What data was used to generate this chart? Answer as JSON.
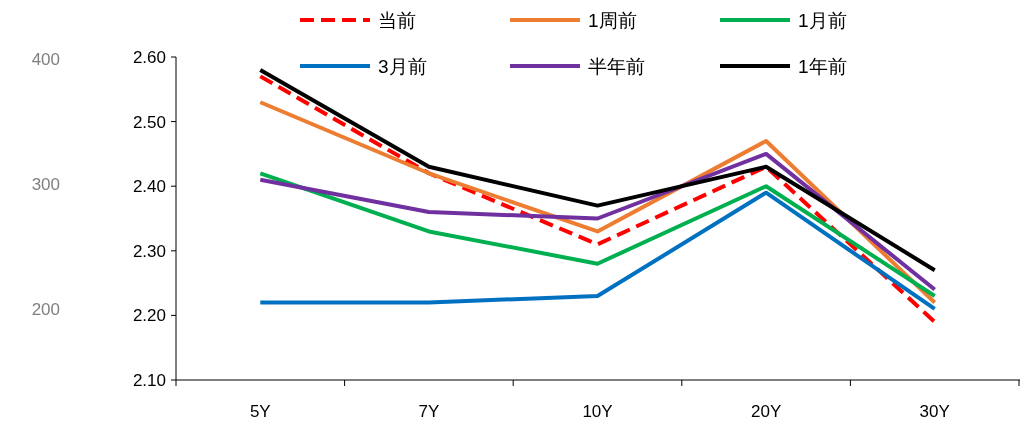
{
  "chart_data": {
    "type": "line",
    "categories": [
      "5Y",
      "7Y",
      "10Y",
      "20Y",
      "30Y"
    ],
    "series": [
      {
        "name": "当前",
        "color": "#ff0000",
        "line_style": "dashed",
        "values": [
          2.57,
          2.42,
          2.31,
          2.43,
          2.19
        ]
      },
      {
        "name": "1周前",
        "color": "#ed7d31",
        "values": [
          2.53,
          2.42,
          2.33,
          2.47,
          2.22
        ]
      },
      {
        "name": "1月前",
        "color": "#00b050",
        "values": [
          2.42,
          2.33,
          2.28,
          2.4,
          2.23
        ]
      },
      {
        "name": "3月前",
        "color": "#0070c0",
        "values": [
          2.22,
          2.22,
          2.23,
          2.39,
          2.21
        ]
      },
      {
        "name": "半年前",
        "color": "#7030a0",
        "values": [
          2.41,
          2.36,
          2.35,
          2.45,
          2.24
        ]
      },
      {
        "name": "1年前",
        "color": "#000000",
        "values": [
          2.58,
          2.43,
          2.37,
          2.43,
          2.27
        ]
      }
    ],
    "ylim": [
      2.1,
      2.6
    ],
    "yticks": [
      {
        "value": 2.1,
        "label": "2.10"
      },
      {
        "value": 2.2,
        "label": "2.20"
      },
      {
        "value": 2.3,
        "label": "2.30"
      },
      {
        "value": 2.4,
        "label": "2.40"
      },
      {
        "value": 2.5,
        "label": "2.50"
      },
      {
        "value": 2.6,
        "label": "2.60"
      }
    ],
    "y2lim": [
      143,
      402
    ],
    "y2ticks": [
      200,
      300,
      400
    ],
    "legend": "top",
    "grid": false,
    "marker": "none",
    "line_style": "solid"
  }
}
